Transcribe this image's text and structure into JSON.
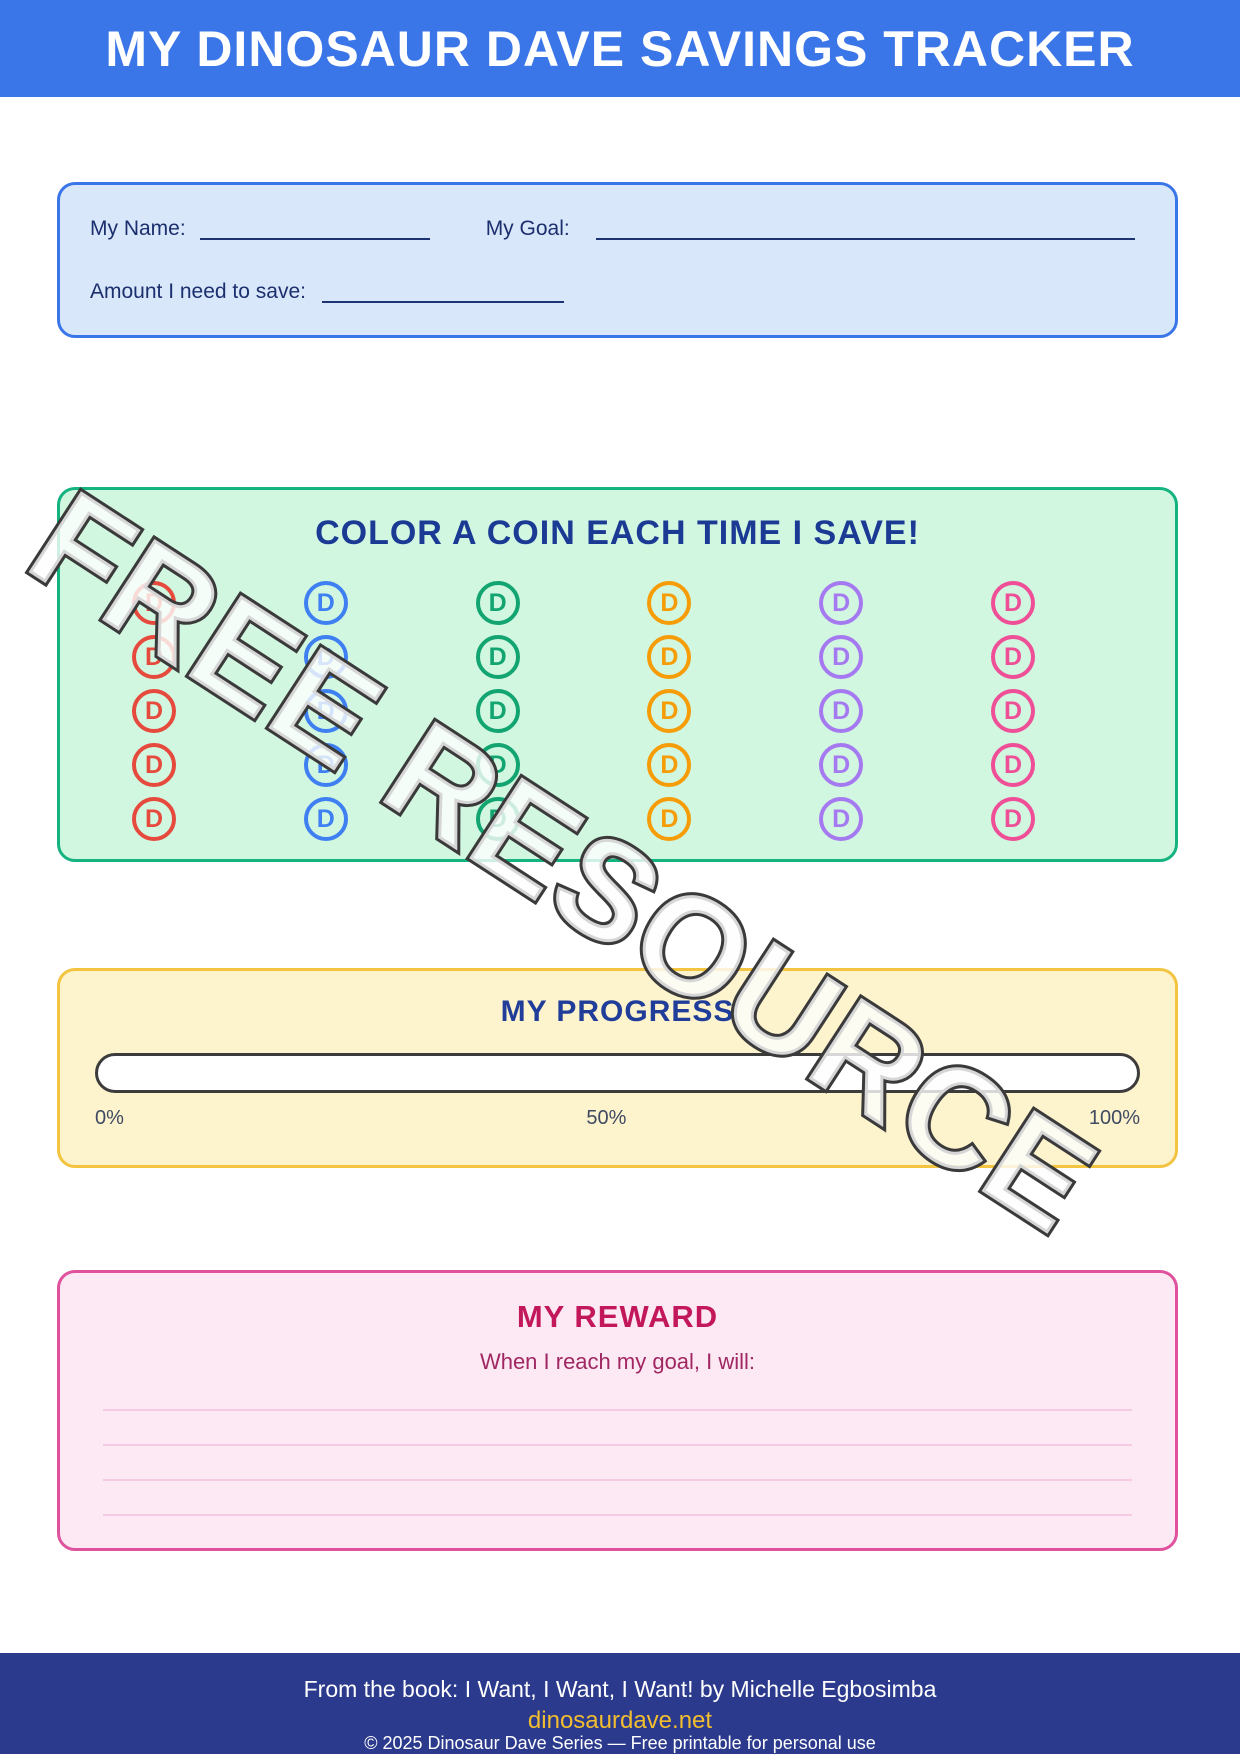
{
  "page": {
    "title": "MY DINOSAUR DAVE SAVINGS TRACKER",
    "watermark": "FREE RESOURCE"
  },
  "info_box": {
    "name_label": "My Name:",
    "goal_label": "My Goal:",
    "amount_label": "Amount I need to save:"
  },
  "coins_box": {
    "title": "COLOR A COIN EACH TIME I SAVE!",
    "coin_letter": "D",
    "rows": 5,
    "columns": 6,
    "column_colors": [
      "#e64a3d",
      "#3e7ff2",
      "#13a571",
      "#f59c07",
      "#a57af0",
      "#ee4f97"
    ]
  },
  "progress_box": {
    "title": "MY PROGRESS",
    "labels": [
      "0%",
      "50%",
      "100%"
    ]
  },
  "reward_box": {
    "title": "MY REWARD",
    "subtitle": "When I reach my goal, I will:",
    "lines": 4
  },
  "footer": {
    "book_line": "From the book: I Want, I Want, I Want! by Michelle Egbosimba",
    "website": "dinosaurdave.net",
    "copyright": "© 2025 Dinosaur Dave Series — Free printable for personal use"
  },
  "colors": {
    "header_background": "#3b76e8",
    "info_fill": "#d9e7fb",
    "coins_fill": "#d2f7e1",
    "coins_border": "#14b380",
    "heading_navy": "#1b3a94",
    "progress_fill": "#fdf3cd",
    "progress_border": "#f3c440",
    "reward_fill": "#fce9f4",
    "reward_border": "#df539e",
    "reward_title": "#c2185b",
    "footer_background": "#2b3a8c",
    "footer_link_gold": "#f2bd2f"
  }
}
